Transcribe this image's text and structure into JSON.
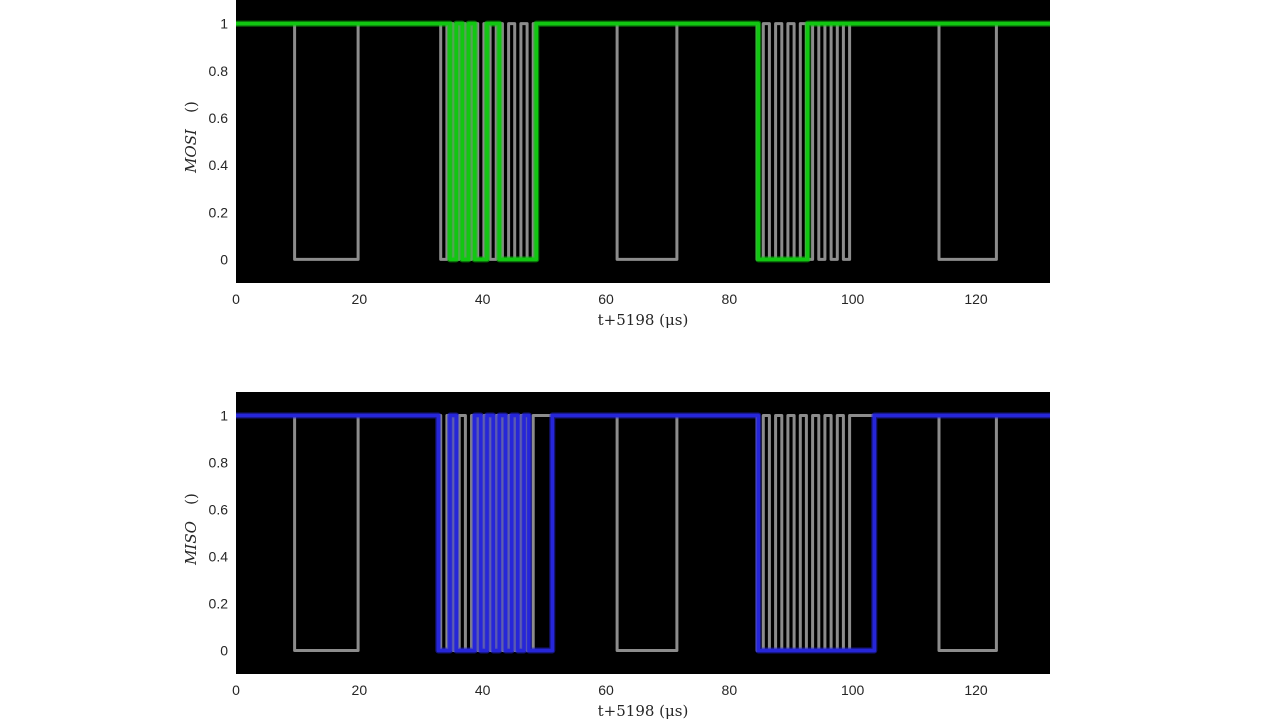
{
  "chart_data": [
    {
      "type": "line",
      "name": "mosi-panel",
      "xlabel": "t+5198 (μs)",
      "ylabel": "MOSI",
      "ylabel_unit": "()",
      "xlim": [
        0,
        132
      ],
      "ylim": [
        -0.1,
        1.1
      ],
      "xticks": [
        0,
        20,
        40,
        60,
        80,
        100,
        120
      ],
      "yticks": [
        0,
        0.2,
        0.4,
        0.6,
        0.8,
        1
      ],
      "background": "#000000",
      "grid": false,
      "series": [
        {
          "role": "clock",
          "color": "#8c8c8c",
          "x": [
            0,
            9.5,
            9.5,
            19.8,
            19.8,
            33.2,
            33.2,
            34.2,
            34.2,
            35.2,
            35.2,
            36.2,
            36.2,
            37.2,
            37.2,
            38.2,
            38.2,
            39.2,
            39.2,
            40.2,
            40.2,
            41.2,
            41.2,
            42.2,
            42.2,
            43.2,
            43.2,
            44.2,
            44.2,
            45.2,
            45.2,
            46.2,
            46.2,
            47.2,
            47.2,
            48.2,
            48.2,
            61.8,
            61.8,
            71.5,
            71.5,
            84.5,
            84.5,
            85.5,
            85.5,
            86.5,
            86.5,
            87.5,
            87.5,
            88.5,
            88.5,
            89.5,
            89.5,
            90.5,
            90.5,
            91.5,
            91.5,
            92.5,
            92.5,
            93.5,
            93.5,
            94.5,
            94.5,
            95.5,
            95.5,
            96.5,
            96.5,
            97.5,
            97.5,
            98.5,
            98.5,
            99.5,
            99.5,
            114,
            114,
            123.3,
            123.3,
            132
          ],
          "y": [
            1,
            1,
            0,
            0,
            1,
            1,
            0,
            0,
            1,
            1,
            0,
            0,
            1,
            1,
            0,
            0,
            1,
            1,
            0,
            0,
            1,
            1,
            0,
            0,
            1,
            1,
            0,
            0,
            1,
            1,
            0,
            0,
            1,
            1,
            0,
            0,
            1,
            1,
            0,
            0,
            1,
            1,
            0,
            0,
            1,
            1,
            0,
            0,
            1,
            1,
            0,
            0,
            1,
            1,
            0,
            0,
            1,
            1,
            0,
            0,
            1,
            1,
            0,
            0,
            1,
            1,
            0,
            0,
            1,
            1,
            0,
            0,
            1,
            1,
            0,
            0,
            1,
            1
          ]
        },
        {
          "role": "data",
          "color": "#11c711",
          "x": [
            0,
            34.7,
            34.7,
            35.7,
            35.7,
            36.7,
            36.7,
            37.7,
            37.7,
            38.7,
            38.7,
            40.7,
            40.7,
            42.7,
            42.7,
            48.7,
            48.7,
            84.7,
            84.7,
            92.7,
            92.7,
            132
          ],
          "y": [
            1,
            1,
            0,
            0,
            1,
            1,
            0,
            0,
            1,
            1,
            0,
            0,
            1,
            1,
            0,
            0,
            1,
            1,
            0,
            0,
            1,
            1
          ]
        }
      ]
    },
    {
      "type": "line",
      "name": "miso-panel",
      "xlabel": "t+5198 (μs)",
      "ylabel": "MISO",
      "ylabel_unit": "()",
      "xlim": [
        0,
        132
      ],
      "ylim": [
        -0.1,
        1.1
      ],
      "xticks": [
        0,
        20,
        40,
        60,
        80,
        100,
        120
      ],
      "yticks": [
        0,
        0.2,
        0.4,
        0.6,
        0.8,
        1
      ],
      "background": "#000000",
      "grid": false,
      "series": [
        {
          "role": "clock",
          "color": "#8c8c8c",
          "x": [
            0,
            9.5,
            9.5,
            19.8,
            19.8,
            33.2,
            33.2,
            34.2,
            34.2,
            35.2,
            35.2,
            36.2,
            36.2,
            37.2,
            37.2,
            38.2,
            38.2,
            39.2,
            39.2,
            40.2,
            40.2,
            41.2,
            41.2,
            42.2,
            42.2,
            43.2,
            43.2,
            44.2,
            44.2,
            45.2,
            45.2,
            46.2,
            46.2,
            47.2,
            47.2,
            48.2,
            48.2,
            61.8,
            61.8,
            71.5,
            71.5,
            84.5,
            84.5,
            85.5,
            85.5,
            86.5,
            86.5,
            87.5,
            87.5,
            88.5,
            88.5,
            89.5,
            89.5,
            90.5,
            90.5,
            91.5,
            91.5,
            92.5,
            92.5,
            93.5,
            93.5,
            94.5,
            94.5,
            95.5,
            95.5,
            96.5,
            96.5,
            97.5,
            97.5,
            98.5,
            98.5,
            99.5,
            99.5,
            114,
            114,
            123.3,
            123.3,
            132
          ],
          "y": [
            1,
            1,
            0,
            0,
            1,
            1,
            0,
            0,
            1,
            1,
            0,
            0,
            1,
            1,
            0,
            0,
            1,
            1,
            0,
            0,
            1,
            1,
            0,
            0,
            1,
            1,
            0,
            0,
            1,
            1,
            0,
            0,
            1,
            1,
            0,
            0,
            1,
            1,
            0,
            0,
            1,
            1,
            0,
            0,
            1,
            1,
            0,
            0,
            1,
            1,
            0,
            0,
            1,
            1,
            0,
            0,
            1,
            1,
            0,
            0,
            1,
            1,
            0,
            0,
            1,
            1,
            0,
            0,
            1,
            1,
            0,
            0,
            1,
            1,
            0,
            0,
            1,
            1
          ]
        },
        {
          "role": "data",
          "color": "#2626d9",
          "x": [
            0,
            32.8,
            32.8,
            34.7,
            34.7,
            35.7,
            35.7,
            38.7,
            38.7,
            39.7,
            39.7,
            40.7,
            40.7,
            41.7,
            41.7,
            42.7,
            42.7,
            43.7,
            43.7,
            44.7,
            44.7,
            45.7,
            45.7,
            46.7,
            46.7,
            47.5,
            47.5,
            51.3,
            51.3,
            84.7,
            84.7,
            103.5,
            103.5,
            132
          ],
          "y": [
            1,
            1,
            0,
            0,
            1,
            1,
            0,
            0,
            1,
            1,
            0,
            0,
            1,
            1,
            0,
            0,
            1,
            1,
            0,
            0,
            1,
            1,
            0,
            0,
            1,
            1,
            0,
            0,
            1,
            1,
            0,
            0,
            1,
            1
          ]
        }
      ]
    }
  ]
}
